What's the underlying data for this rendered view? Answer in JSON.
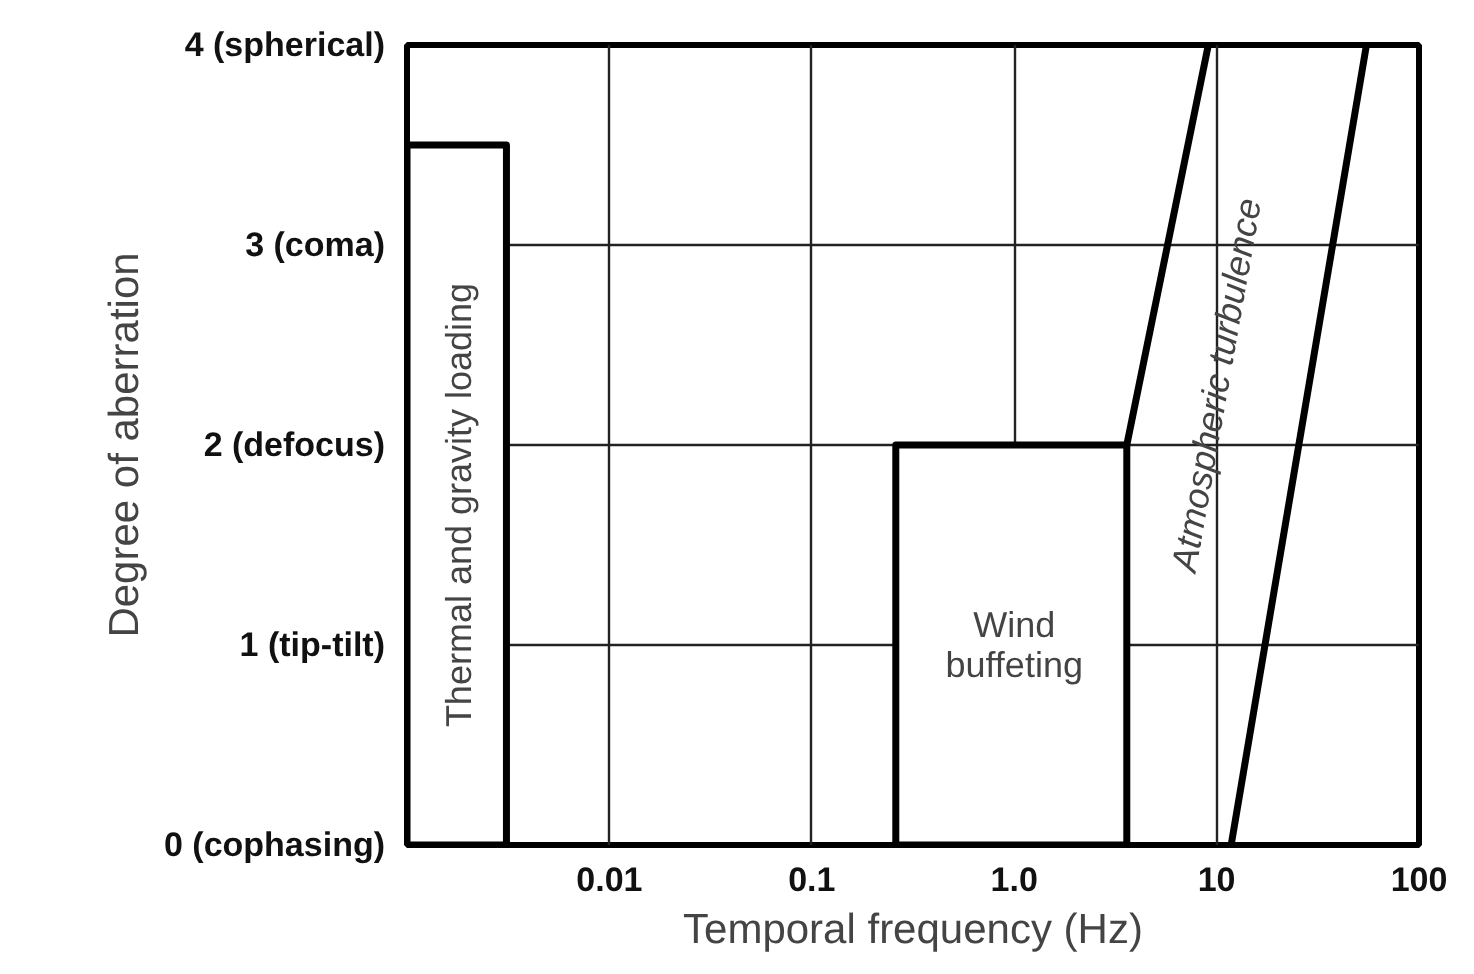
{
  "chart_data": {
    "type": "area",
    "xlabel": "Temporal frequency (Hz)",
    "ylabel": "Degree of aberration",
    "log": "x",
    "xlim": [
      0.001,
      100
    ],
    "xticks": [
      0.01,
      0.1,
      {
        "value": 1,
        "label": "1.0"
      },
      10,
      100
    ],
    "ylim": [
      0,
      4
    ],
    "yticks": [
      {
        "value": 0,
        "label": "0 (cophasing)"
      },
      {
        "value": 1,
        "label": "1 (tip-tilt)"
      },
      {
        "value": 2,
        "label": "2 (defocus)"
      },
      {
        "value": 3,
        "label": "3 (coma)"
      },
      {
        "value": 4,
        "label": "4 (spherical)"
      }
    ],
    "grid": true,
    "series": [
      {
        "color": "#000000",
        "x": [
          0.001,
          0.0031
        ],
        "values": [
          3.5,
          3.5
        ]
      },
      {
        "color": "#000000",
        "x": [
          0.26,
          3.6
        ],
        "values": [
          2,
          2
        ]
      },
      {
        "type": "line",
        "color": "#000000",
        "x": [
          3.6,
          9.1
        ],
        "values": [
          2,
          4
        ]
      },
      {
        "type": "line",
        "color": "#000000",
        "x": [
          11.8,
          55
        ],
        "values": [
          0,
          4
        ]
      }
    ],
    "annotations": [
      "Thermal and gravity loading",
      "Wind\nbuffeting",
      "Atmospheric turbulence"
    ]
  }
}
